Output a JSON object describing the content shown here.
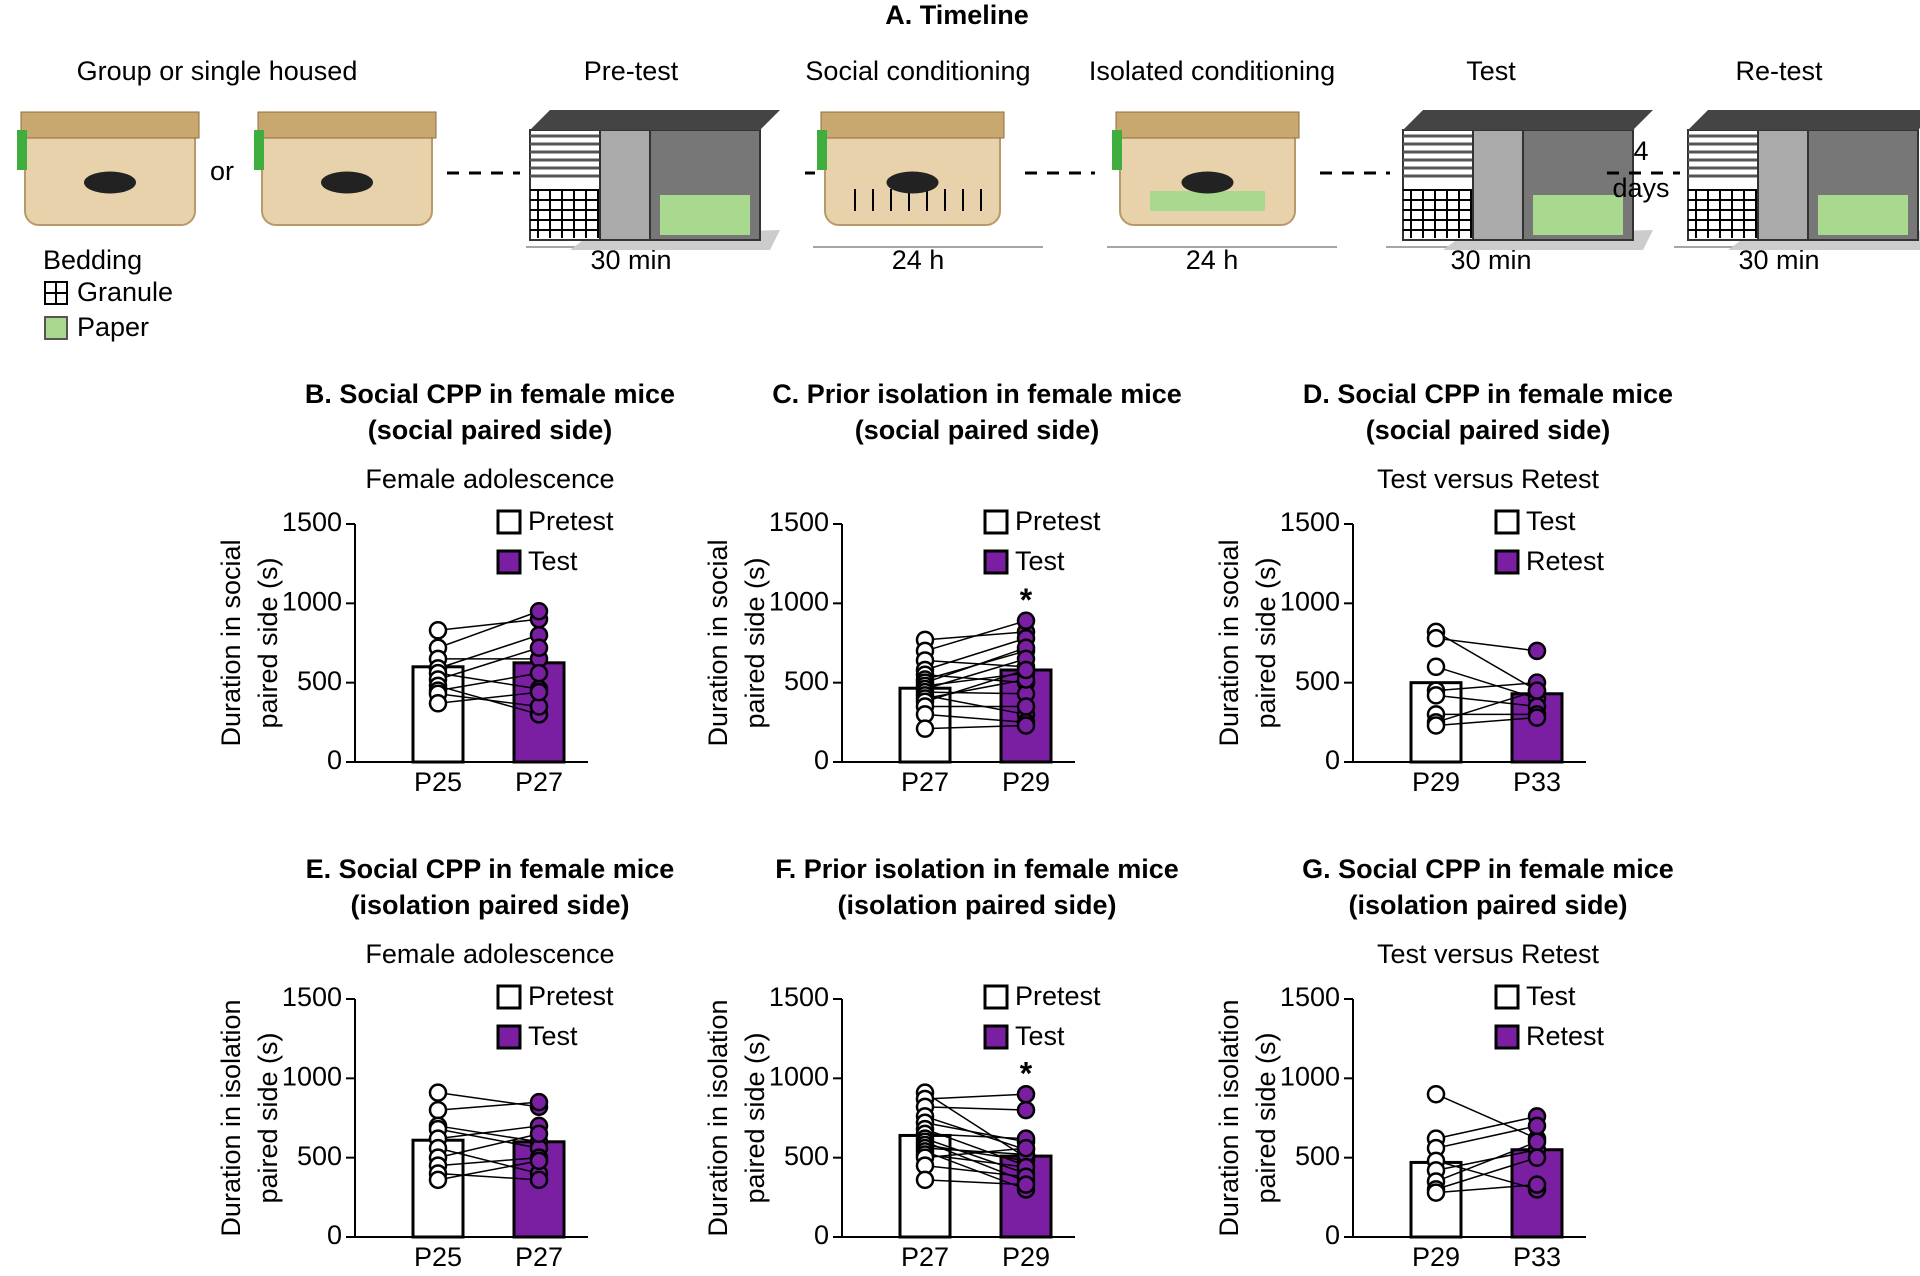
{
  "timeline": {
    "title": "A. Timeline",
    "stages": [
      {
        "label": "Group or single housed"
      },
      {
        "label": "Pre-test",
        "duration": "30 min"
      },
      {
        "label": "Social conditioning",
        "duration": "24 h"
      },
      {
        "label": "Isolated conditioning",
        "duration": "24 h"
      },
      {
        "label": "Test",
        "duration": "30 min"
      },
      {
        "label": "Re-test",
        "duration": "30 min"
      }
    ],
    "or": "or",
    "gap": [
      "4",
      "days"
    ],
    "bedding": {
      "title": "Bedding",
      "items": [
        "Granule",
        "Paper"
      ]
    }
  },
  "chart_data": [
    {
      "type": "bar",
      "title": [
        "B. Social CPP in female mice",
        "(social paired side)"
      ],
      "subtitle": "Female adolescence",
      "ylabel": [
        "Duration in social",
        "paired side (s)"
      ],
      "categories": [
        "P25",
        "P27"
      ],
      "ylim": [
        0,
        1500
      ],
      "yticks": [
        0,
        500,
        1000,
        1500
      ],
      "series": [
        {
          "name": "Pretest",
          "color": "#ffffff",
          "values": [
            600,
            null
          ],
          "points": [
            830,
            720,
            650,
            590,
            560,
            520,
            480,
            450,
            430,
            370
          ]
        },
        {
          "name": "Test",
          "color": "#7b1fa2",
          "values": [
            null,
            625
          ],
          "points": [
            900,
            950,
            650,
            800,
            460,
            720,
            300,
            560,
            350,
            440
          ]
        }
      ]
    },
    {
      "type": "bar",
      "title": [
        "C. Prior isolation in female mice",
        "(social paired side)"
      ],
      "ylabel": [
        "Duration in social",
        "paired side (s)"
      ],
      "categories": [
        "P27",
        "P29"
      ],
      "ylim": [
        0,
        1500
      ],
      "yticks": [
        0,
        500,
        1000,
        1500
      ],
      "annotation": "*",
      "series": [
        {
          "name": "Pretest",
          "color": "#ffffff",
          "values": [
            465,
            null
          ],
          "points": [
            770,
            700,
            640,
            580,
            550,
            520,
            500,
            480,
            460,
            440,
            420,
            400,
            380,
            350,
            300,
            210
          ]
        },
        {
          "name": "Test",
          "color": "#7b1fa2",
          "values": [
            null,
            580
          ],
          "points": [
            820,
            890,
            600,
            780,
            500,
            700,
            720,
            560,
            650,
            430,
            300,
            520,
            580,
            350,
            250,
            230
          ]
        }
      ]
    },
    {
      "type": "bar",
      "title": [
        "D. Social CPP in female mice",
        "(social paired side)"
      ],
      "subtitle": "Test versus Retest",
      "ylabel": [
        "Duration in social",
        "paired side (s)"
      ],
      "categories": [
        "P29",
        "P33"
      ],
      "ylim": [
        0,
        1500
      ],
      "yticks": [
        0,
        500,
        1000,
        1500
      ],
      "series": [
        {
          "name": "Test",
          "color": "#ffffff",
          "values": [
            500,
            null
          ],
          "points": [
            820,
            780,
            600,
            450,
            420,
            300,
            250,
            230
          ]
        },
        {
          "name": "Retest",
          "color": "#7b1fa2",
          "values": [
            null,
            430
          ],
          "points": [
            450,
            700,
            400,
            500,
            350,
            300,
            450,
            280
          ]
        }
      ]
    },
    {
      "type": "bar",
      "title": [
        "E. Social CPP in female mice",
        "(isolation paired side)"
      ],
      "subtitle": "Female adolescence",
      "ylabel": [
        "Duration in isolation",
        "paired side (s)"
      ],
      "categories": [
        "P25",
        "P27"
      ],
      "ylim": [
        0,
        1500
      ],
      "yticks": [
        0,
        500,
        1000,
        1500
      ],
      "series": [
        {
          "name": "Pretest",
          "color": "#ffffff",
          "values": [
            610,
            null
          ],
          "points": [
            910,
            800,
            700,
            680,
            620,
            560,
            500,
            450,
            400,
            360
          ]
        },
        {
          "name": "Test",
          "color": "#7b1fa2",
          "values": [
            null,
            600
          ],
          "points": [
            820,
            850,
            600,
            560,
            700,
            400,
            650,
            500,
            360,
            480
          ]
        }
      ]
    },
    {
      "type": "bar",
      "title": [
        "F. Prior isolation in female mice",
        "(isolation paired side)"
      ],
      "ylabel": [
        "Duration in isolation",
        "paired side (s)"
      ],
      "categories": [
        "P27",
        "P29"
      ],
      "ylim": [
        0,
        1500
      ],
      "yticks": [
        0,
        500,
        1000,
        1500
      ],
      "annotation": "*",
      "series": [
        {
          "name": "Pretest",
          "color": "#ffffff",
          "values": [
            640,
            null
          ],
          "points": [
            910,
            870,
            820,
            760,
            720,
            680,
            650,
            620,
            600,
            580,
            560,
            540,
            520,
            500,
            450,
            360
          ]
        },
        {
          "name": "Test",
          "color": "#7b1fa2",
          "values": [
            null,
            510
          ],
          "points": [
            500,
            900,
            800,
            550,
            600,
            450,
            620,
            400,
            350,
            480,
            520,
            300,
            440,
            560,
            380,
            330
          ]
        }
      ]
    },
    {
      "type": "bar",
      "title": [
        "G. Social CPP in female mice",
        "(isolation paired side)"
      ],
      "subtitle": "Test versus Retest",
      "ylabel": [
        "Duration in isolation",
        "paired side (s)"
      ],
      "categories": [
        "P29",
        "P33"
      ],
      "ylim": [
        0,
        1500
      ],
      "yticks": [
        0,
        500,
        1000,
        1500
      ],
      "series": [
        {
          "name": "Test",
          "color": "#ffffff",
          "values": [
            470,
            null
          ],
          "points": [
            900,
            620,
            560,
            480,
            420,
            350,
            300,
            280
          ]
        },
        {
          "name": "Retest",
          "color": "#7b1fa2",
          "values": [
            null,
            550
          ],
          "points": [
            620,
            760,
            700,
            300,
            550,
            600,
            500,
            330
          ]
        }
      ]
    }
  ]
}
